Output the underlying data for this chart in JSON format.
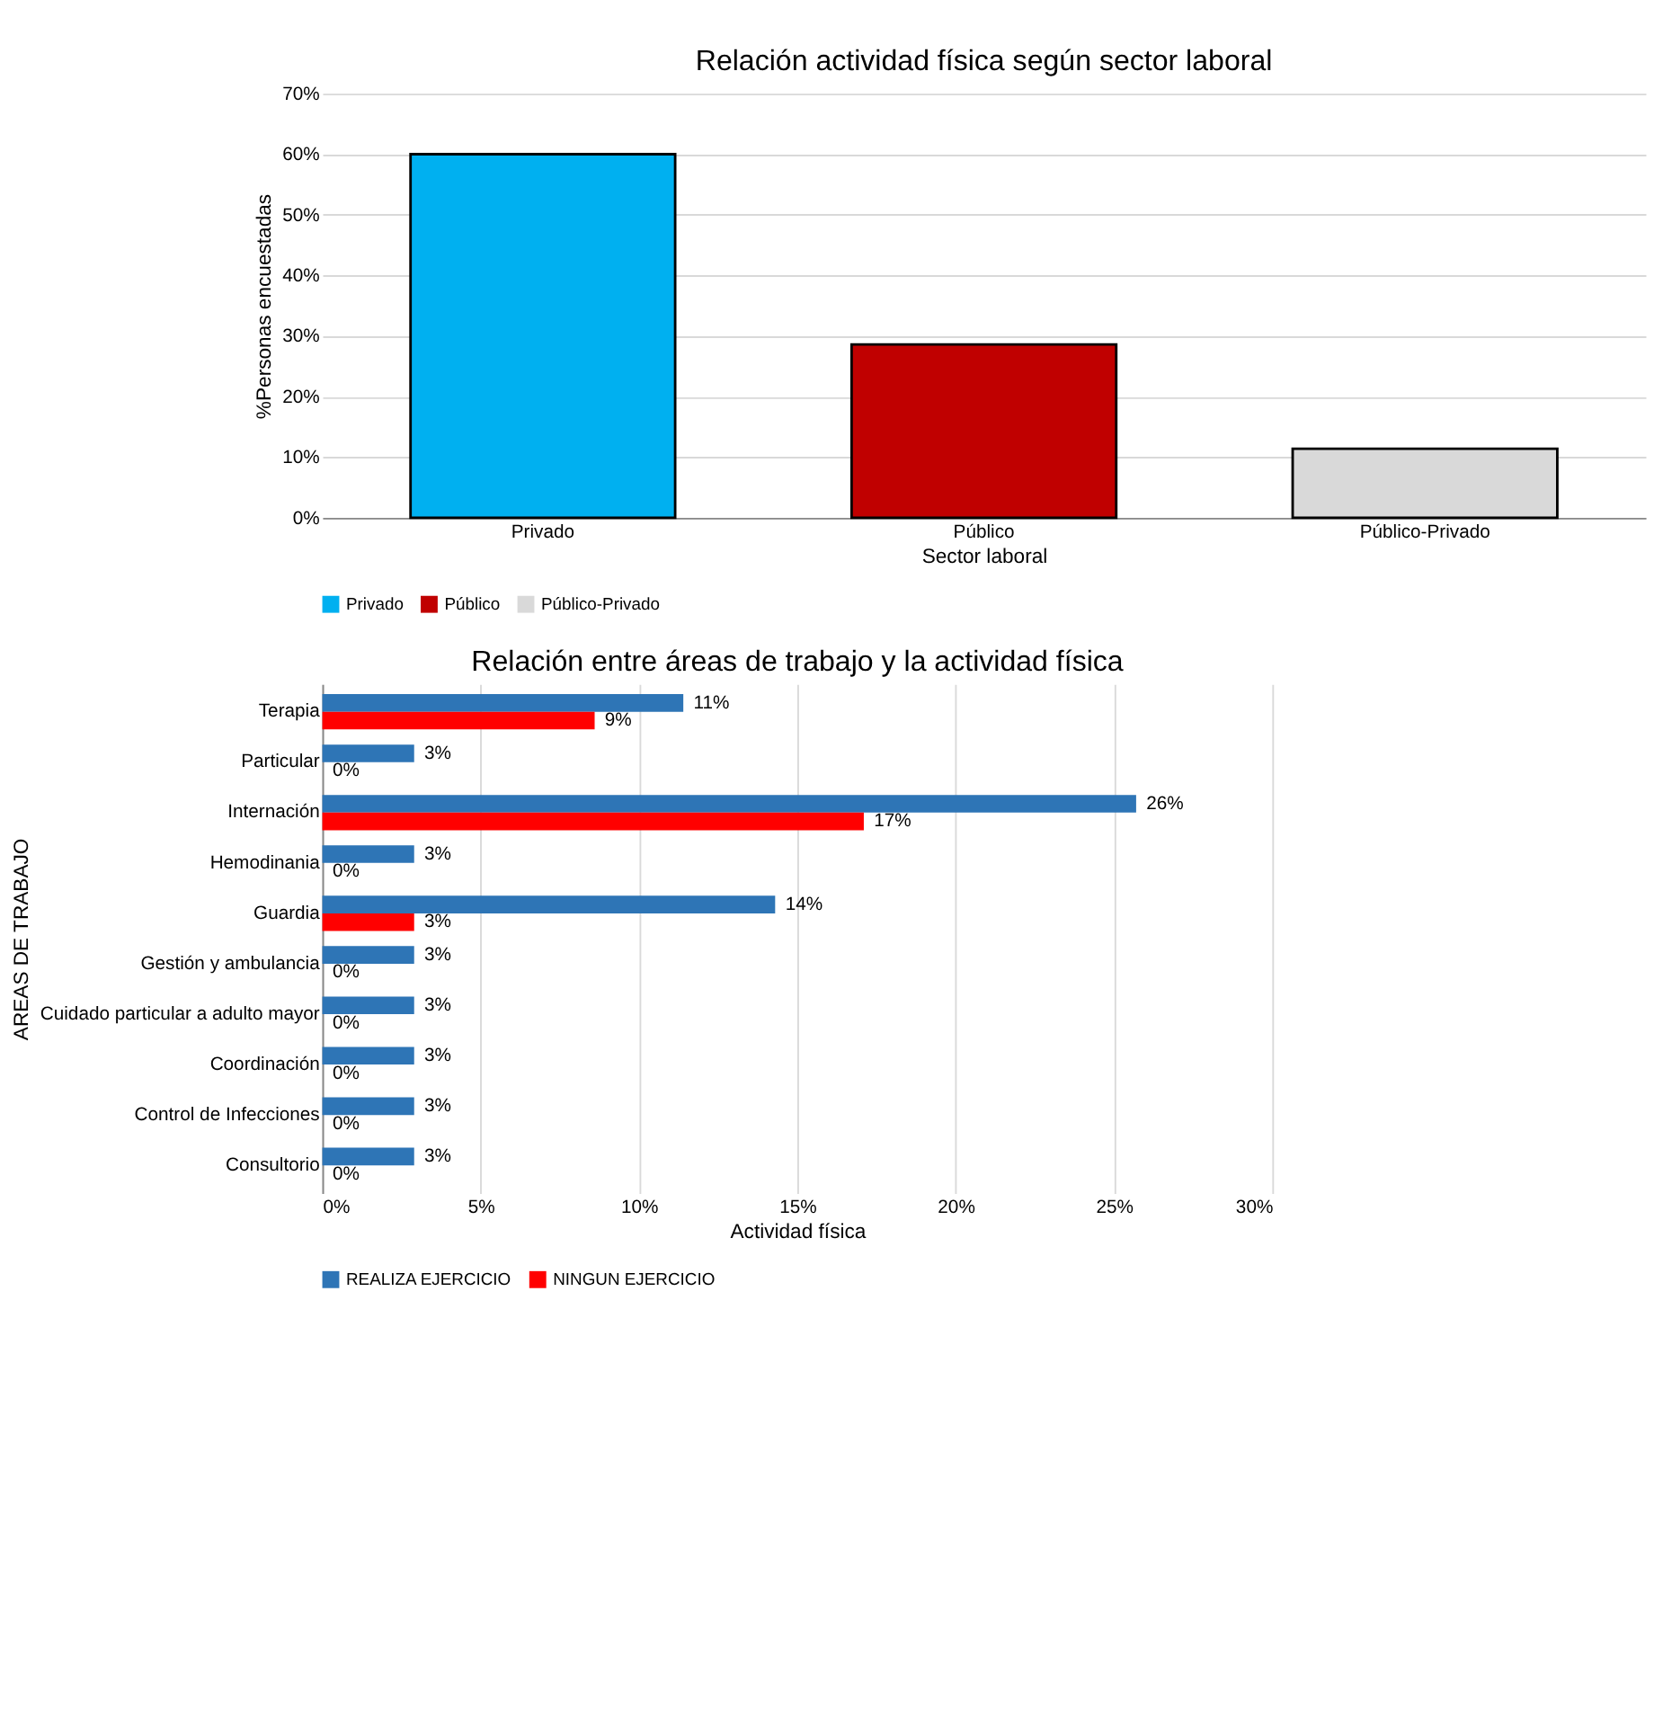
{
  "chart_data": [
    {
      "type": "bar",
      "title": "Relación actividad física según sector laboral",
      "xlabel": "Sector laboral",
      "ylabel": "%Personas encuestadas",
      "categories": [
        "Privado",
        "Público",
        "Público-Privado"
      ],
      "series": [
        {
          "name": "Privado",
          "color": "#00b0f0",
          "values": [
            60,
            null,
            null
          ]
        },
        {
          "name": "Público",
          "color": "#c00000",
          "values": [
            null,
            28.6,
            null
          ]
        },
        {
          "name": "Público-Privado",
          "color": "#d9d9d9",
          "values": [
            null,
            null,
            11.4
          ]
        }
      ],
      "ylim": [
        0,
        70
      ],
      "yticks": [
        {
          "value": 0,
          "label": "0%"
        },
        {
          "value": 10,
          "label": "10%"
        },
        {
          "value": 20,
          "label": "20%"
        },
        {
          "value": 30,
          "label": "30%"
        },
        {
          "value": 40,
          "label": "40%"
        },
        {
          "value": 50,
          "label": "50%"
        },
        {
          "value": 60,
          "label": "60%"
        },
        {
          "value": 70,
          "label": "70%"
        }
      ],
      "grid": "y",
      "legend": "bottom"
    },
    {
      "type": "bar",
      "orientation": "horizontal",
      "title": "Relación entre áreas de trabajo y la actividad  física",
      "xlabel": "Actividad física",
      "ylabel": "AREAS DE TRABAJO",
      "categories": [
        "Terapia",
        "Particular",
        "Internación",
        "Hemodinania",
        "Guardia",
        "Gestión y ambulancia",
        "Cuidado particular a adulto mayor",
        "Coordinación",
        "Control de Infecciones",
        "Consultorio"
      ],
      "series": [
        {
          "name": "REALIZA EJERCICIO",
          "color": "#2e75b6",
          "values": [
            11.4,
            2.9,
            25.7,
            2.9,
            14.3,
            2.9,
            2.9,
            2.9,
            2.9,
            2.9
          ],
          "value_labels": [
            "11%",
            "3%",
            "26%",
            "3%",
            "14%",
            "3%",
            "3%",
            "3%",
            "3%",
            "3%"
          ]
        },
        {
          "name": "NINGUN EJERCICIO",
          "color": "#ff0000",
          "values": [
            8.6,
            0,
            17.1,
            0,
            2.9,
            0,
            0,
            0,
            0,
            0
          ],
          "value_labels": [
            "9%",
            "0%",
            "17%",
            "0%",
            "3%",
            "0%",
            "0%",
            "0%",
            "0%",
            "0%"
          ]
        }
      ],
      "xlim": [
        0,
        30
      ],
      "xticks": [
        {
          "value": 0,
          "label": "0%"
        },
        {
          "value": 5,
          "label": "5%"
        },
        {
          "value": 10,
          "label": "10%"
        },
        {
          "value": 15,
          "label": "15%"
        },
        {
          "value": 20,
          "label": "20%"
        },
        {
          "value": 25,
          "label": "25%"
        },
        {
          "value": 30,
          "label": "30%"
        }
      ],
      "grid": "x",
      "legend": "bottom"
    }
  ]
}
